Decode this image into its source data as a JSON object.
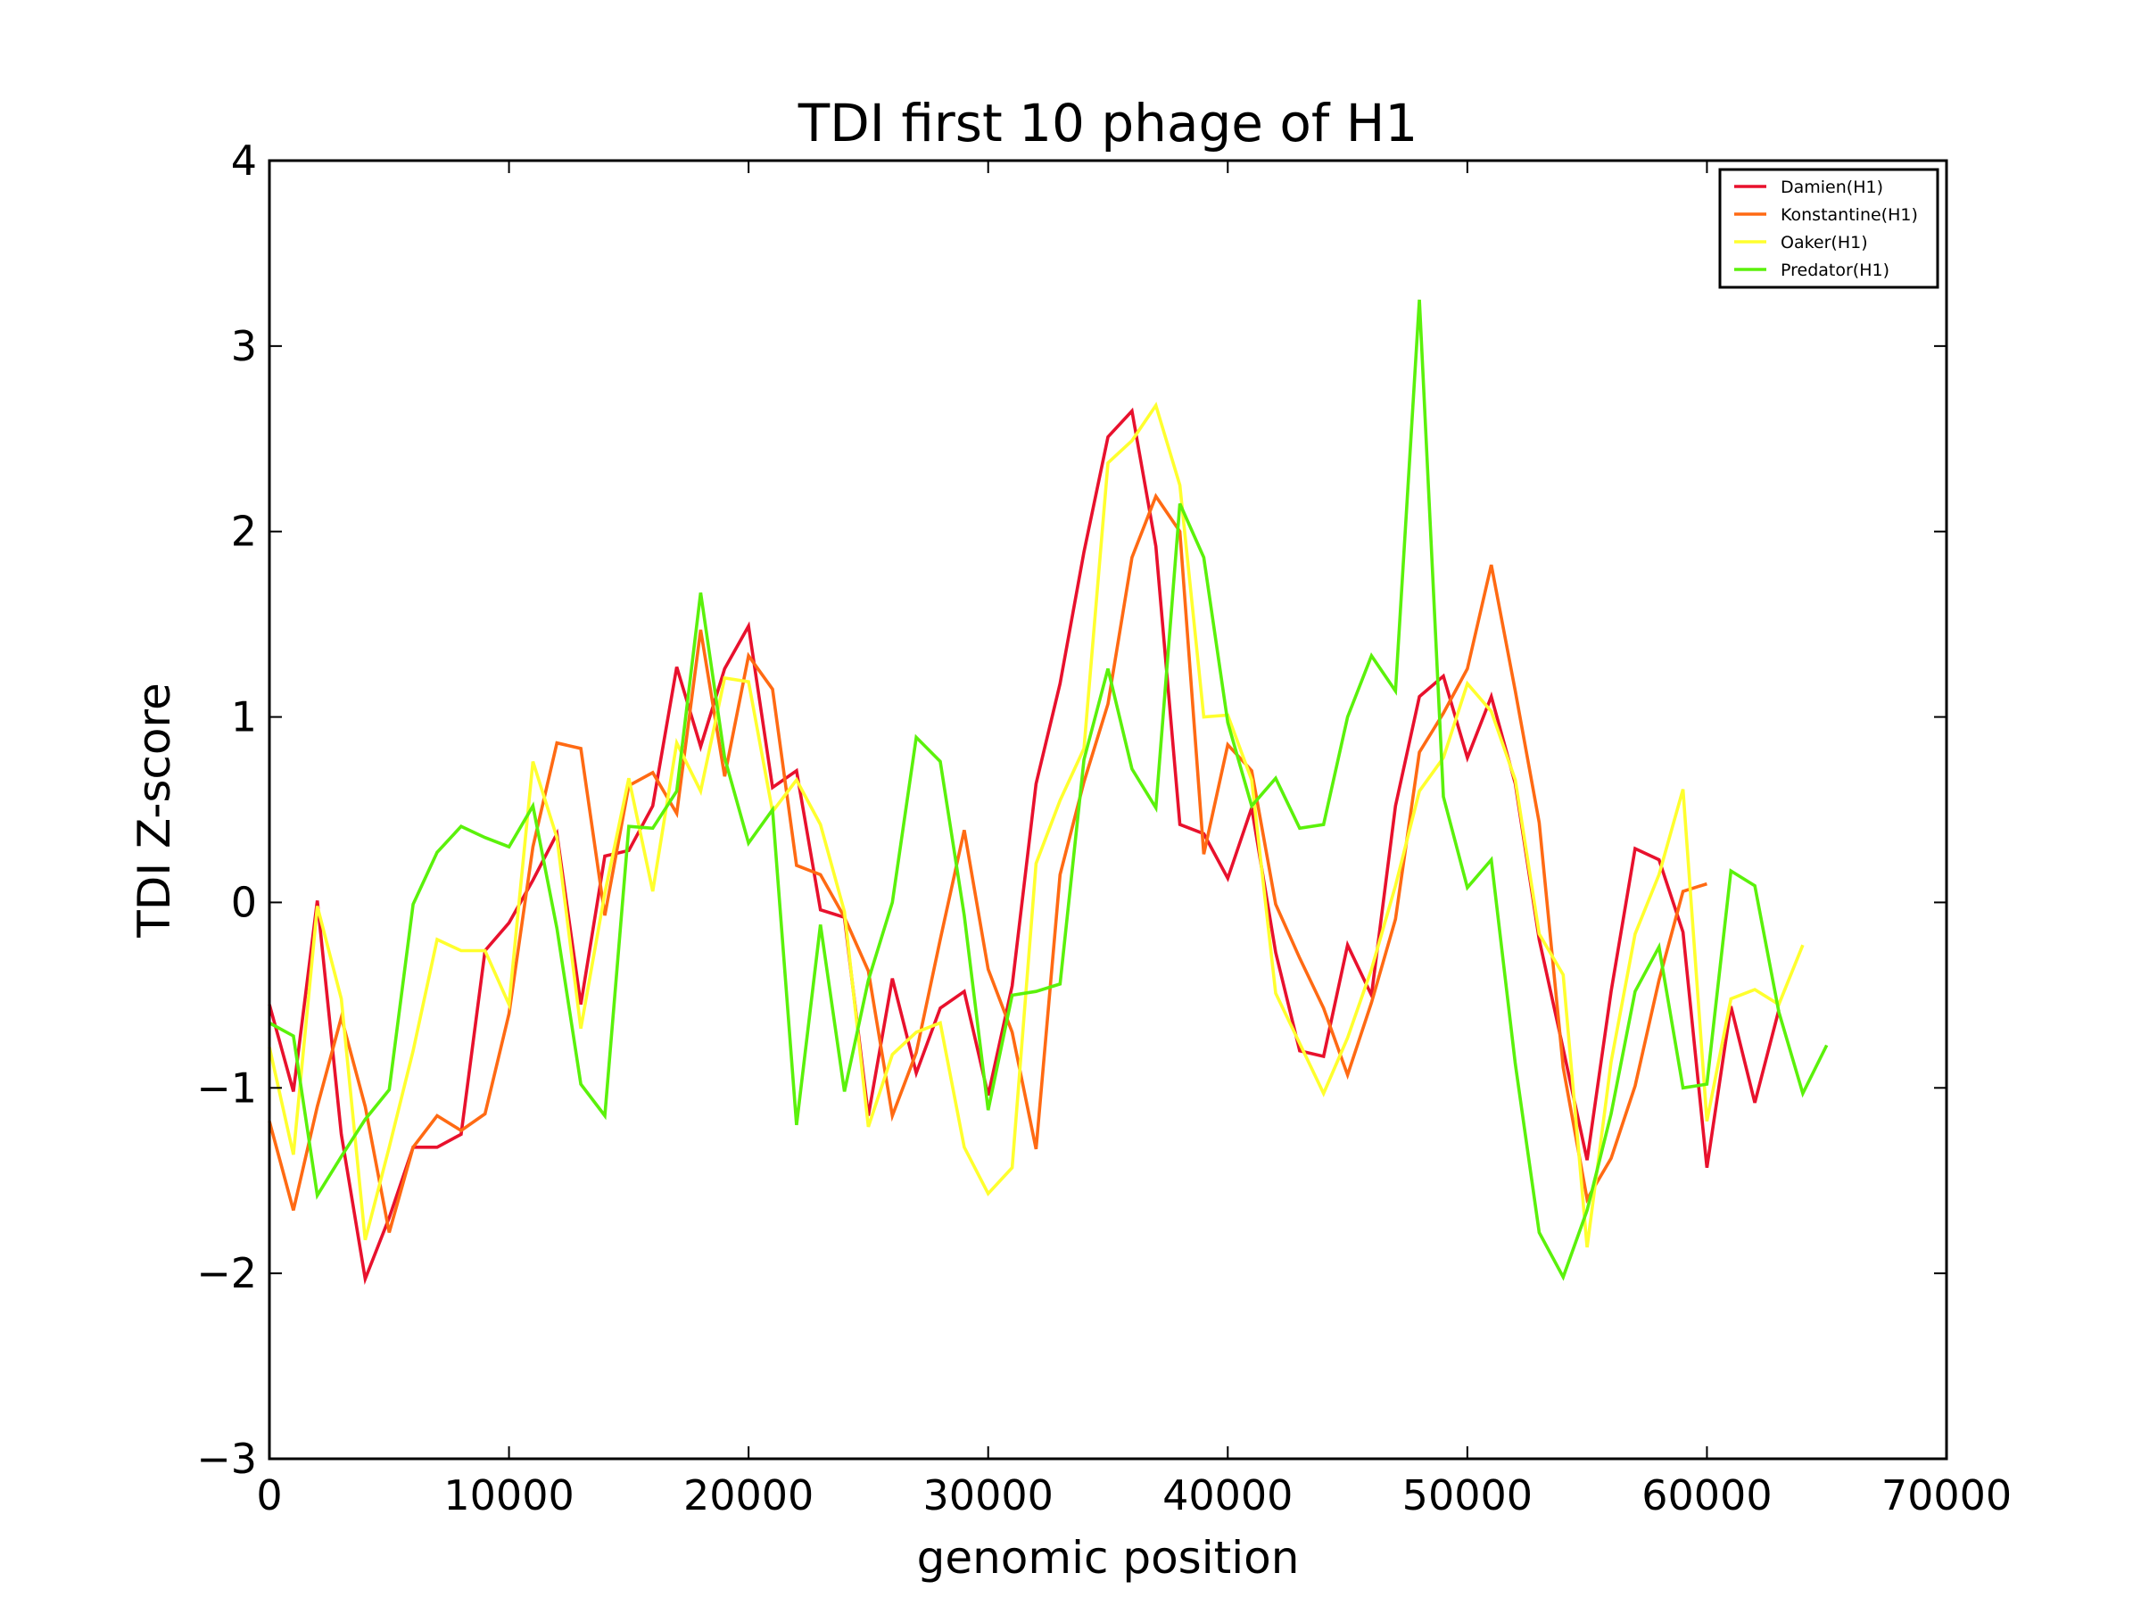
{
  "chart_data": {
    "type": "line",
    "title": "TDI first 10 phage of H1",
    "xlabel": "genomic position",
    "ylabel": "TDI Z-score",
    "xlim": [
      0,
      70000
    ],
    "ylim": [
      -3,
      4
    ],
    "xticks": [
      0,
      10000,
      20000,
      30000,
      40000,
      50000,
      60000,
      70000
    ],
    "xtick_labels": [
      "0",
      "10000",
      "20000",
      "30000",
      "40000",
      "50000",
      "60000",
      "70000"
    ],
    "yticks": [
      -3,
      -2,
      -1,
      0,
      1,
      2,
      3,
      4
    ],
    "ytick_labels": [
      "−3",
      "−2",
      "−1",
      "0",
      "1",
      "2",
      "3",
      "4"
    ],
    "grid": false,
    "legend_position": "top-right",
    "series": [
      {
        "name": "Damien(H1)",
        "color": "#e8112d",
        "x": [
          0,
          1000,
          2000,
          3000,
          4000,
          5000,
          6000,
          7000,
          8000,
          9000,
          10000,
          11000,
          12000,
          13000,
          14000,
          15000,
          16000,
          17000,
          18000,
          19000,
          20000,
          21000,
          22000,
          23000,
          24000,
          25000,
          26000,
          27000,
          28000,
          29000,
          30000,
          31000,
          32000,
          33000,
          34000,
          35000,
          36000,
          37000,
          38000,
          39000,
          40000,
          41000,
          42000,
          43000,
          44000,
          45000,
          46000,
          47000,
          48000,
          49000,
          50000,
          51000,
          52000,
          53000,
          54000,
          55000,
          56000,
          57000,
          58000,
          59000,
          60000,
          61000,
          62000,
          63000
        ],
        "y": [
          -0.55,
          -1.02,
          0.01,
          -1.25,
          -2.03,
          -1.7,
          -1.32,
          -1.32,
          -1.25,
          -0.26,
          -0.11,
          0.12,
          0.37,
          -0.55,
          0.25,
          0.28,
          0.52,
          1.27,
          0.84,
          1.26,
          1.49,
          0.62,
          0.71,
          -0.04,
          -0.08,
          -1.15,
          -0.41,
          -0.92,
          -0.57,
          -0.48,
          -1.04,
          -0.45,
          0.64,
          1.18,
          1.89,
          2.51,
          2.65,
          1.92,
          0.42,
          0.37,
          0.13,
          0.51,
          -0.27,
          -0.8,
          -0.83,
          -0.23,
          -0.5,
          0.52,
          1.11,
          1.22,
          0.78,
          1.11,
          0.64,
          -0.2,
          -0.79,
          -1.39,
          -0.48,
          0.29,
          0.23,
          -0.16,
          -1.43,
          -0.56,
          -1.08,
          -0.58
        ]
      },
      {
        "name": "Konstantine(H1)",
        "color": "#ff6a13",
        "x": [
          0,
          1000,
          2000,
          3000,
          4000,
          5000,
          6000,
          7000,
          8000,
          9000,
          10000,
          11000,
          12000,
          13000,
          14000,
          15000,
          16000,
          17000,
          18000,
          19000,
          20000,
          21000,
          22000,
          23000,
          24000,
          25000,
          26000,
          27000,
          28000,
          29000,
          30000,
          31000,
          32000,
          33000,
          34000,
          35000,
          36000,
          37000,
          38000,
          39000,
          40000,
          41000,
          42000,
          43000,
          44000,
          45000,
          46000,
          47000,
          48000,
          49000,
          50000,
          51000,
          52000,
          53000,
          54000,
          55000,
          56000,
          57000,
          58000,
          59000,
          60000
        ],
        "y": [
          -1.18,
          -1.66,
          -1.1,
          -0.62,
          -1.1,
          -1.78,
          -1.32,
          -1.15,
          -1.23,
          -1.14,
          -0.6,
          0.3,
          0.86,
          0.83,
          -0.07,
          0.63,
          0.7,
          0.48,
          1.47,
          0.68,
          1.33,
          1.15,
          0.2,
          0.15,
          -0.08,
          -0.37,
          -1.15,
          -0.81,
          -0.2,
          0.39,
          -0.36,
          -0.7,
          -1.33,
          0.15,
          0.65,
          1.07,
          1.86,
          2.19,
          2.0,
          0.26,
          0.85,
          0.71,
          -0.01,
          -0.3,
          -0.57,
          -0.93,
          -0.54,
          -0.09,
          0.81,
          1.02,
          1.26,
          1.82,
          1.14,
          0.43,
          -0.89,
          -1.6,
          -1.38,
          -0.99,
          -0.42,
          0.06,
          0.1
        ]
      },
      {
        "name": "Oaker(H1)",
        "color": "#ffff2e",
        "x": [
          0,
          1000,
          2000,
          3000,
          4000,
          5000,
          6000,
          7000,
          8000,
          9000,
          10000,
          11000,
          12000,
          13000,
          14000,
          15000,
          16000,
          17000,
          18000,
          19000,
          20000,
          21000,
          22000,
          23000,
          24000,
          25000,
          26000,
          27000,
          28000,
          29000,
          30000,
          31000,
          32000,
          33000,
          34000,
          35000,
          36000,
          37000,
          38000,
          39000,
          40000,
          41000,
          42000,
          43000,
          44000,
          45000,
          46000,
          47000,
          48000,
          49000,
          50000,
          51000,
          52000,
          53000,
          54000,
          55000,
          56000,
          57000,
          58000,
          59000,
          60000,
          61000,
          62000,
          63000,
          64000
        ],
        "y": [
          -0.78,
          -1.36,
          -0.02,
          -0.52,
          -1.82,
          -1.32,
          -0.8,
          -0.2,
          -0.26,
          -0.26,
          -0.55,
          0.76,
          0.35,
          -0.68,
          0.05,
          0.67,
          0.06,
          0.86,
          0.6,
          1.21,
          1.19,
          0.49,
          0.66,
          0.42,
          -0.05,
          -1.21,
          -0.82,
          -0.7,
          -0.65,
          -1.32,
          -1.57,
          -1.43,
          0.21,
          0.55,
          0.83,
          2.37,
          2.49,
          2.68,
          2.25,
          1.0,
          1.01,
          0.66,
          -0.49,
          -0.76,
          -1.03,
          -0.73,
          -0.36,
          0.09,
          0.6,
          0.78,
          1.18,
          1.03,
          0.66,
          -0.17,
          -0.39,
          -1.86,
          -0.86,
          -0.17,
          0.15,
          0.61,
          -1.18,
          -0.52,
          -0.47,
          -0.55,
          -0.23
        ]
      },
      {
        "name": "Predator(H1)",
        "color": "#5bf10b",
        "x": [
          0,
          1000,
          2000,
          3000,
          4000,
          5000,
          6000,
          7000,
          8000,
          9000,
          10000,
          11000,
          12000,
          13000,
          14000,
          15000,
          16000,
          17000,
          18000,
          19000,
          20000,
          21000,
          22000,
          23000,
          24000,
          25000,
          26000,
          27000,
          28000,
          29000,
          30000,
          31000,
          32000,
          33000,
          34000,
          35000,
          36000,
          37000,
          38000,
          39000,
          40000,
          41000,
          42000,
          43000,
          44000,
          45000,
          46000,
          47000,
          48000,
          49000,
          50000,
          51000,
          52000,
          53000,
          54000,
          55000,
          56000,
          57000,
          58000,
          59000,
          60000,
          61000,
          62000,
          63000,
          64000,
          65000
        ],
        "y": [
          -0.65,
          -0.72,
          -1.58,
          -1.37,
          -1.17,
          -1.01,
          -0.01,
          0.27,
          0.41,
          0.35,
          0.3,
          0.52,
          -0.14,
          -0.98,
          -1.15,
          0.41,
          0.4,
          0.6,
          1.67,
          0.78,
          0.32,
          0.5,
          -1.2,
          -0.12,
          -1.02,
          -0.42,
          0.0,
          0.89,
          0.76,
          -0.07,
          -1.12,
          -0.5,
          -0.48,
          -0.44,
          0.77,
          1.26,
          0.72,
          0.51,
          2.15,
          1.86,
          0.97,
          0.52,
          0.67,
          0.4,
          0.42,
          1.0,
          1.33,
          1.14,
          3.25,
          0.57,
          0.08,
          0.23,
          -0.87,
          -1.78,
          -2.02,
          -1.66,
          -1.14,
          -0.48,
          -0.24,
          -1.0,
          -0.98,
          0.17,
          0.09,
          -0.59,
          -1.03,
          -0.77
        ]
      }
    ]
  }
}
